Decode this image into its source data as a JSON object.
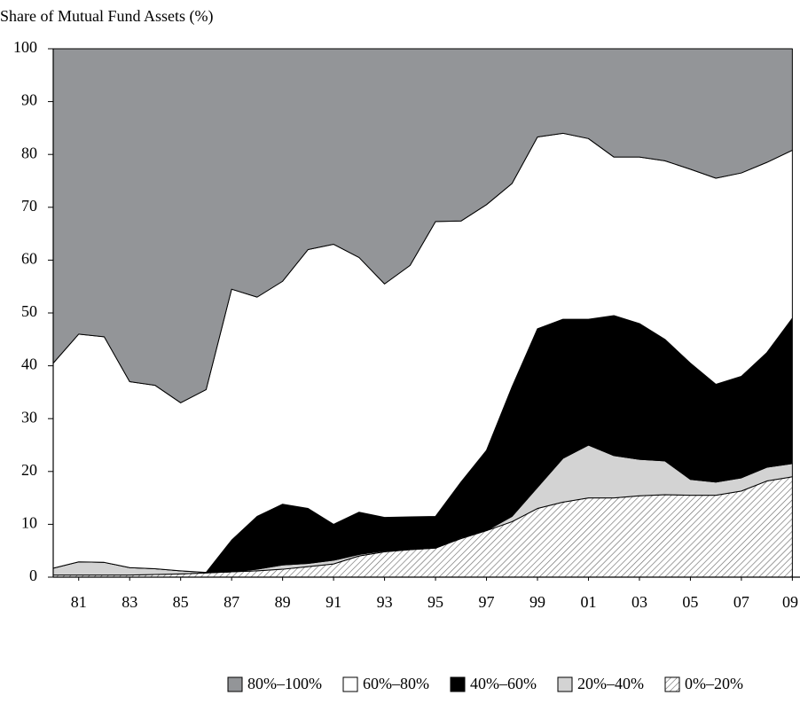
{
  "chart_data": {
    "type": "stacked_area",
    "y_label": "Share of Mutual Fund Assets (%)",
    "x": [
      1980,
      1981,
      1982,
      1983,
      1984,
      1985,
      1986,
      1987,
      1988,
      1989,
      1990,
      1991,
      1992,
      1993,
      1994,
      1995,
      1996,
      1997,
      1998,
      1999,
      2000,
      2001,
      2002,
      2003,
      2004,
      2005,
      2006,
      2007,
      2008,
      2009
    ],
    "xlim": [
      1980,
      2009.3
    ],
    "xticks": [
      {
        "value": 1981,
        "label": "81"
      },
      {
        "value": 1983,
        "label": "83"
      },
      {
        "value": 1985,
        "label": "85"
      },
      {
        "value": 1987,
        "label": "87"
      },
      {
        "value": 1989,
        "label": "89"
      },
      {
        "value": 1991,
        "label": "91"
      },
      {
        "value": 1993,
        "label": "93"
      },
      {
        "value": 1995,
        "label": "95"
      },
      {
        "value": 1997,
        "label": "97"
      },
      {
        "value": 1999,
        "label": "99"
      },
      {
        "value": 2001,
        "label": "01"
      },
      {
        "value": 2003,
        "label": "03"
      },
      {
        "value": 2005,
        "label": "05"
      },
      {
        "value": 2007,
        "label": "07"
      },
      {
        "value": 2009,
        "label": "09"
      }
    ],
    "ylim": [
      0,
      100
    ],
    "yticks": [
      0,
      10,
      20,
      30,
      40,
      50,
      60,
      70,
      80,
      90,
      100
    ],
    "series": [
      {
        "name": "80%–100%",
        "color": "#939598",
        "values": [
          59.5,
          54,
          54.5,
          63,
          63.7,
          67,
          64.5,
          45.5,
          47,
          44,
          38,
          37,
          39.5,
          44.5,
          41,
          32.7,
          32.6,
          29.5,
          25.5,
          16.7,
          16,
          17,
          20.5,
          20.5,
          21.2,
          22.8,
          24.5,
          23.5,
          21.5,
          19.2
        ]
      },
      {
        "name": "60%–80%",
        "color": "#ffffff",
        "values": [
          38.8,
          43.1,
          42.7,
          35.2,
          34.7,
          31.8,
          34.6,
          47.5,
          41.5,
          42.2,
          49,
          53,
          48.2,
          44.2,
          47.6,
          55.8,
          49.4,
          46.5,
          38.5,
          36.3,
          35.2,
          34.2,
          30,
          31.5,
          33.8,
          36.7,
          39,
          38.5,
          36,
          31.8
        ]
      },
      {
        "name": "40%–60%",
        "color": "#000000",
        "values": [
          0,
          0,
          0,
          0,
          0,
          0,
          0,
          6,
          10,
          11.5,
          10.4,
          6.8,
          8,
          6.3,
          6.1,
          5.9,
          10.5,
          15.2,
          24.5,
          30,
          26.3,
          23.8,
          26.5,
          25.7,
          23,
          22,
          18.5,
          19.2,
          21.7,
          27.5
        ]
      },
      {
        "name": "20%–40%",
        "color": "#d3d3d3",
        "values": [
          1.3,
          2.5,
          2.4,
          1.4,
          1.1,
          0.6,
          0.1,
          0,
          0.3,
          0.8,
          0.6,
          0.7,
          0.3,
          0.2,
          0.1,
          0.1,
          0.2,
          0,
          1,
          4,
          8.3,
          10,
          8,
          6.9,
          6.4,
          3,
          2.5,
          2.5,
          2.6,
          2.5
        ]
      },
      {
        "name": "0%–20%",
        "color": "#6d6d6d",
        "hatch": true,
        "values": [
          0.4,
          0.4,
          0.4,
          0.4,
          0.5,
          0.6,
          0.8,
          1,
          1.2,
          1.5,
          2,
          2.5,
          4,
          4.8,
          5.2,
          5.5,
          7.3,
          8.8,
          10.5,
          13,
          14.2,
          15,
          15,
          15.4,
          15.6,
          15.5,
          15.5,
          16.3,
          18.2,
          19
        ]
      }
    ]
  }
}
